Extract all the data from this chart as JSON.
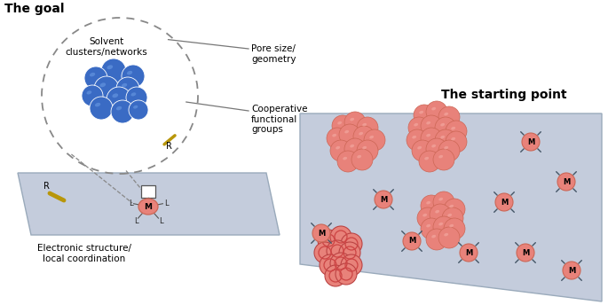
{
  "title": "The goal",
  "title2": "The starting point",
  "label_solvent": "Solvent\nclusters/networks",
  "label_pore": "Pore size/\ngeometry",
  "label_coop": "Cooperative\nfunctional\ngroups",
  "label_electronic": "Electronic structure/\nlocal coordination",
  "blue_color": "#3A6BC4",
  "blue_edge": "#FFFFFF",
  "blue_highlight": "#7AAAEE",
  "pink_color": "#E8827A",
  "pink_light": "#F5B0A8",
  "pink_dark": "#BB4444",
  "pink_edge": "#CC6655",
  "surface_color": "#C4CCDC",
  "surface_edge": "#9AAABB",
  "bg_color": "#FFFFFF",
  "gold_color": "#B8960A",
  "line_color": "#777777",
  "M_text": "M",
  "L_text": "L",
  "R_text": "R"
}
